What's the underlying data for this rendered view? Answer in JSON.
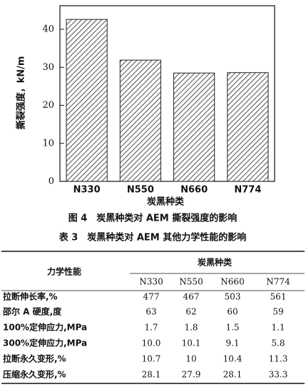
{
  "chart_data": {
    "type": "bar",
    "ylabel": "撕裂强度，kN/m",
    "xlabel": "炭黑种类",
    "categories": [
      "N330",
      "N550",
      "N660",
      "N774"
    ],
    "values": [
      42.6,
      31.9,
      28.5,
      28.6
    ],
    "ylim": [
      0,
      46.2
    ],
    "yticks": [
      0,
      10,
      20,
      30,
      40
    ],
    "hatch": true,
    "color": "#222"
  },
  "figure_caption": "图 4　炭黑种类对 AEM 撕裂强度的影响",
  "table": {
    "title": "表 3　炭黑种类对 AEM 其他力学性能的影响",
    "row_header": "力学性能",
    "group_header": "炭黑种类",
    "columns": [
      "N330",
      "N550",
      "N660",
      "N774"
    ],
    "rows": [
      [
        "拉断伸长率,%",
        "477",
        "467",
        "503",
        "561"
      ],
      [
        "邵尔 A 硬度,度",
        "63",
        "62",
        "60",
        "59"
      ],
      [
        "100%定伸应力,MPa",
        "1.7",
        "1.8",
        "1.5",
        "1.1"
      ],
      [
        "300%定伸应力,MPa",
        "10.0",
        "10.1",
        "9.1",
        "5.8"
      ],
      [
        "拉断永久变形,%",
        "10.7",
        "10",
        "10.4",
        "11.3"
      ],
      [
        "压缩永久变形,%",
        "28.1",
        "27.9",
        "28.1",
        "33.3"
      ]
    ]
  }
}
